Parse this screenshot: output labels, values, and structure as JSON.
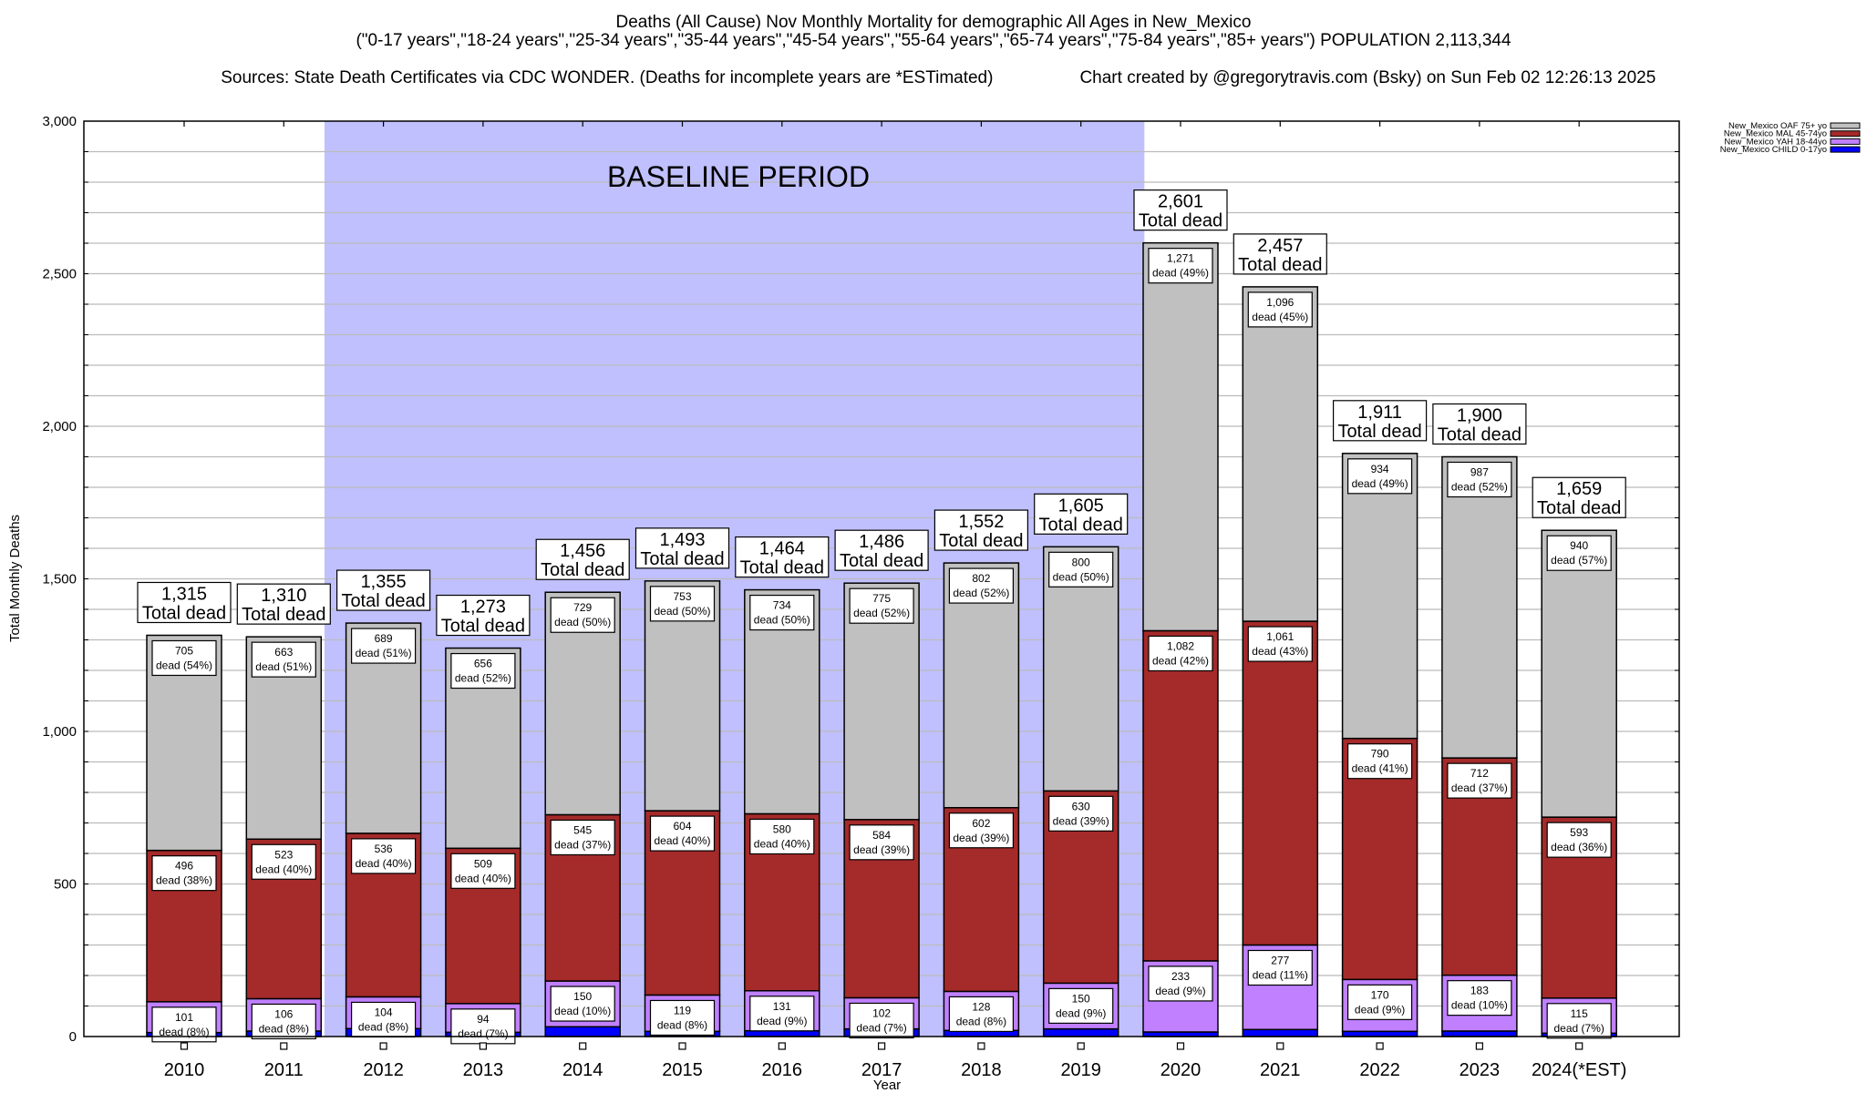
{
  "chart_data": {
    "type": "bar",
    "stacked": true,
    "title": "Deaths (All Cause) Nov Monthly Mortality for demographic All Ages in New_Mexico",
    "subtitle": "(\"0-17 years\",\"18-24 years\",\"25-34 years\",\"35-44 years\",\"45-54 years\",\"55-64 years\",\"65-74 years\",\"75-84 years\",\"85+ years\") POPULATION 2,113,344",
    "source_note": "Sources: State Death Certificates via CDC WONDER. (Deaths for incomplete years are *ESTimated)",
    "credit": "Chart created by @gregorytravis.com (Bsky) on Sun Feb 02 12:26:13 2025",
    "xlabel": "Year",
    "ylabel": "Total Monthly Deaths",
    "ylim": [
      0,
      3000
    ],
    "y_ticks": [
      0,
      500,
      1000,
      1500,
      2000,
      2500,
      3000
    ],
    "y_tick_labels": [
      "0",
      "500",
      "1,000",
      "1,500",
      "2,000",
      "2,500",
      "3,000"
    ],
    "y_minor_step": 100,
    "grid": true,
    "legend_position": "top-right (outside plot)",
    "categories": [
      "2010",
      "2011",
      "2012",
      "2013",
      "2014",
      "2015",
      "2016",
      "2017",
      "2018",
      "2019",
      "2020",
      "2021",
      "2022",
      "2023",
      "2024(*EST)"
    ],
    "annotation": {
      "text": "BASELINE PERIOD",
      "start_category": "2012",
      "end_category": "2019",
      "color": "#c0c0ff"
    },
    "total_label_suffix": "Total dead",
    "segment_label_word": "dead",
    "totals": [
      1315,
      1310,
      1355,
      1273,
      1456,
      1493,
      1464,
      1486,
      1552,
      1605,
      2601,
      2457,
      1911,
      1900,
      1659
    ],
    "total_labels": [
      "1,315",
      "1,310",
      "1,355",
      "1,273",
      "1,456",
      "1,493",
      "1,464",
      "1,486",
      "1,552",
      "1,605",
      "2,601",
      "2,457",
      "1,911",
      "1,900",
      "1,659"
    ],
    "series": [
      {
        "name": "New_Mexico CHILD 0-17yo",
        "color": "#0000ff",
        "values": [
          13,
          18,
          26,
          14,
          32,
          17,
          19,
          25,
          20,
          25,
          15,
          23,
          17,
          18,
          11
        ],
        "labeled": false
      },
      {
        "name": "New_Mexico YAH 18-44yo",
        "color": "#c080ff",
        "values": [
          101,
          106,
          104,
          94,
          150,
          119,
          131,
          102,
          128,
          150,
          233,
          277,
          170,
          183,
          115
        ],
        "value_labels": [
          "101",
          "106",
          "104",
          "94",
          "150",
          "119",
          "131",
          "102",
          "128",
          "150",
          "233",
          "277",
          "170",
          "183",
          "115"
        ],
        "pct_labels": [
          "8%",
          "8%",
          "8%",
          "7%",
          "10%",
          "8%",
          "9%",
          "7%",
          "8%",
          "9%",
          "9%",
          "11%",
          "9%",
          "10%",
          "7%"
        ],
        "labeled": true
      },
      {
        "name": "New_Mexico MAL 45-74yo",
        "color": "#a52a2a",
        "values": [
          496,
          523,
          536,
          509,
          545,
          604,
          580,
          584,
          602,
          630,
          1082,
          1061,
          790,
          712,
          593
        ],
        "value_labels": [
          "496",
          "523",
          "536",
          "509",
          "545",
          "604",
          "580",
          "584",
          "602",
          "630",
          "1,082",
          "1,061",
          "790",
          "712",
          "593"
        ],
        "pct_labels": [
          "38%",
          "40%",
          "40%",
          "40%",
          "37%",
          "40%",
          "40%",
          "39%",
          "39%",
          "39%",
          "42%",
          "43%",
          "41%",
          "37%",
          "36%"
        ],
        "labeled": true
      },
      {
        "name": "New_Mexico OAF 75+ yo",
        "color": "#c0c0c0",
        "values": [
          705,
          663,
          689,
          656,
          729,
          753,
          734,
          775,
          802,
          800,
          1271,
          1096,
          934,
          987,
          940
        ],
        "value_labels": [
          "705",
          "663",
          "689",
          "656",
          "729",
          "753",
          "734",
          "775",
          "802",
          "800",
          "1,271",
          "1,096",
          "934",
          "987",
          "940"
        ],
        "pct_labels": [
          "54%",
          "51%",
          "51%",
          "52%",
          "50%",
          "50%",
          "50%",
          "52%",
          "52%",
          "50%",
          "49%",
          "45%",
          "49%",
          "52%",
          "57%"
        ],
        "labeled": true
      }
    ],
    "legend_order": [
      "New_Mexico OAF 75+ yo",
      "New_Mexico MAL 45-74yo",
      "New_Mexico YAH 18-44yo",
      "New_Mexico CHILD 0-17yo"
    ]
  }
}
